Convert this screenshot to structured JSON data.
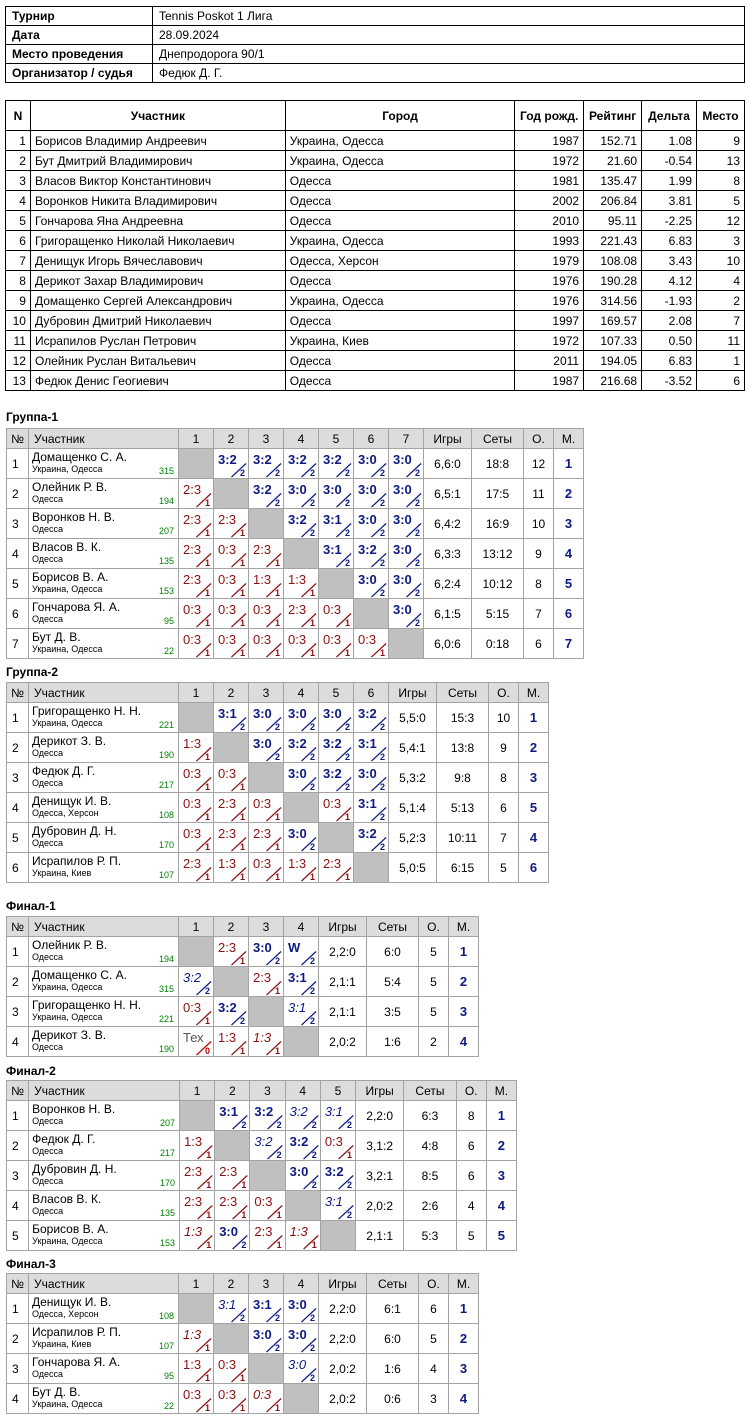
{
  "info": [
    {
      "label": "Турнир",
      "value": "Tennis Poskot 1 Лига"
    },
    {
      "label": "Дата",
      "value": "28.09.2024"
    },
    {
      "label": "Место проведения",
      "value": "Днепродорога 90/1"
    },
    {
      "label": "Организатор / судья",
      "value": "Федюк Д. Г."
    }
  ],
  "participants": {
    "headers": [
      "N",
      "Участник",
      "Город",
      "Год рожд.",
      "Рейтинг",
      "Дельта",
      "Место"
    ],
    "rows": [
      [
        "1",
        "Борисов Владимир Андреевич",
        "Украина, Одесса",
        "1987",
        "152.71",
        "1.08",
        "9"
      ],
      [
        "2",
        "Бут Дмитрий Владимирович",
        "Украина, Одесса",
        "1972",
        "21.60",
        "-0.54",
        "13"
      ],
      [
        "3",
        "Власов Виктор Константинович",
        "Одесса",
        "1981",
        "135.47",
        "1.99",
        "8"
      ],
      [
        "4",
        "Воронков Никита Владимирович",
        "Одесса",
        "2002",
        "206.84",
        "3.81",
        "5"
      ],
      [
        "5",
        "Гончарова Яна Андреевна",
        "Одесса",
        "2010",
        "95.11",
        "-2.25",
        "12"
      ],
      [
        "6",
        "Григоращенко Николай Николаевич",
        "Украина, Одесса",
        "1993",
        "221.43",
        "6.83",
        "3"
      ],
      [
        "7",
        "Денищук Игорь Вячеславович",
        "Одесса, Херсон",
        "1979",
        "108.08",
        "3.43",
        "10"
      ],
      [
        "8",
        "Дерикот Захар Владимирович",
        "Одесса",
        "1976",
        "190.28",
        "4.12",
        "4"
      ],
      [
        "9",
        "Домащенко Сергей Александрович",
        "Украина, Одесса",
        "1976",
        "314.56",
        "-1.93",
        "2"
      ],
      [
        "10",
        "Дубровин Дмитрий Николаевич",
        "Одесса",
        "1997",
        "169.57",
        "2.08",
        "7"
      ],
      [
        "11",
        "Исрапилов Руслан Петрович",
        "Украина, Киев",
        "1972",
        "107.33",
        "0.50",
        "11"
      ],
      [
        "12",
        "Олейник Руслан Витальевич",
        "Одесса",
        "2011",
        "194.05",
        "6.83",
        "1"
      ],
      [
        "13",
        "Федюк Денис Геогиевич",
        "Одесса",
        "1987",
        "216.68",
        "-3.52",
        "6"
      ]
    ]
  },
  "group_headers": {
    "num": "№",
    "player": "Участник",
    "games": "Игры",
    "sets": "Сеты",
    "points": "О.",
    "place": "М."
  },
  "groups": [
    {
      "title": "Группа-1",
      "size": 7,
      "rows": [
        {
          "n": "1",
          "name": "Домащенко С. А.",
          "city": "Украина, Одесса",
          "rating": "315",
          "scores": [
            "",
            "3:2/2",
            "3:2/2",
            "3:2/2",
            "3:2/2",
            "3:0/2",
            "3:0/2"
          ],
          "games": "6,6:0",
          "sets": "18:8",
          "points": "12",
          "place": "1"
        },
        {
          "n": "2",
          "name": "Олейник Р. В.",
          "city": "Одесса",
          "rating": "194",
          "scores": [
            "2:3/1",
            "",
            "3:2/2",
            "3:0/2",
            "3:0/2",
            "3:0/2",
            "3:0/2"
          ],
          "games": "6,5:1",
          "sets": "17:5",
          "points": "11",
          "place": "2"
        },
        {
          "n": "3",
          "name": "Воронков Н. В.",
          "city": "Одесса",
          "rating": "207",
          "scores": [
            "2:3/1",
            "2:3/1",
            "",
            "3:2/2",
            "3:1/2",
            "3:0/2",
            "3:0/2"
          ],
          "games": "6,4:2",
          "sets": "16:9",
          "points": "10",
          "place": "3"
        },
        {
          "n": "4",
          "name": "Власов В. К.",
          "city": "Одесса",
          "rating": "135",
          "scores": [
            "2:3/1",
            "0:3/1",
            "2:3/1",
            "",
            "3:1/2",
            "3:2/2",
            "3:0/2"
          ],
          "games": "6,3:3",
          "sets": "13:12",
          "points": "9",
          "place": "4"
        },
        {
          "n": "5",
          "name": "Борисов В. А.",
          "city": "Украина, Одесса",
          "rating": "153",
          "scores": [
            "2:3/1",
            "0:3/1",
            "1:3/1",
            "1:3/1",
            "",
            "3:0/2",
            "3:0/2"
          ],
          "games": "6,2:4",
          "sets": "10:12",
          "points": "8",
          "place": "5"
        },
        {
          "n": "6",
          "name": "Гончарова Я. А.",
          "city": "Одесса",
          "rating": "95",
          "scores": [
            "0:3/1",
            "0:3/1",
            "0:3/1",
            "2:3/1",
            "0:3/1",
            "",
            "3:0/2"
          ],
          "games": "6,1:5",
          "sets": "5:15",
          "points": "7",
          "place": "6"
        },
        {
          "n": "7",
          "name": "Бут Д. В.",
          "city": "Украина, Одесса",
          "rating": "22",
          "scores": [
            "0:3/1",
            "0:3/1",
            "0:3/1",
            "0:3/1",
            "0:3/1",
            "0:3/1",
            ""
          ],
          "games": "6,0:6",
          "sets": "0:18",
          "points": "6",
          "place": "7"
        }
      ]
    },
    {
      "title": "Группа-2",
      "size": 6,
      "rows": [
        {
          "n": "1",
          "name": "Григоращенко Н. Н.",
          "city": "Украина, Одесса",
          "rating": "221",
          "scores": [
            "",
            "3:1/2",
            "3:0/2",
            "3:0/2",
            "3:0/2",
            "3:2/2"
          ],
          "games": "5,5:0",
          "sets": "15:3",
          "points": "10",
          "place": "1"
        },
        {
          "n": "2",
          "name": "Дерикот З. В.",
          "city": "Одесса",
          "rating": "190",
          "scores": [
            "1:3/1",
            "",
            "3:0/2",
            "3:2/2",
            "3:2/2",
            "3:1/2"
          ],
          "games": "5,4:1",
          "sets": "13:8",
          "points": "9",
          "place": "2"
        },
        {
          "n": "3",
          "name": "Федюк Д. Г.",
          "city": "Одесса",
          "rating": "217",
          "scores": [
            "0:3/1",
            "0:3/1",
            "",
            "3:0/2",
            "3:2/2",
            "3:0/2"
          ],
          "games": "5,3:2",
          "sets": "9:8",
          "points": "8",
          "place": "3"
        },
        {
          "n": "4",
          "name": "Денищук И. В.",
          "city": "Одесса, Херсон",
          "rating": "108",
          "scores": [
            "0:3/1",
            "2:3/1",
            "0:3/1",
            "",
            "0:3/1",
            "3:1/2"
          ],
          "games": "5,1:4",
          "sets": "5:13",
          "points": "6",
          "place": "5"
        },
        {
          "n": "5",
          "name": "Дубровин Д. Н.",
          "city": "Одесса",
          "rating": "170",
          "scores": [
            "0:3/1",
            "2:3/1",
            "2:3/1",
            "3:0/2",
            "",
            "3:2/2"
          ],
          "games": "5,2:3",
          "sets": "10:11",
          "points": "7",
          "place": "4"
        },
        {
          "n": "6",
          "name": "Исрапилов Р. П.",
          "city": "Украина, Киев",
          "rating": "107",
          "scores": [
            "2:3/1",
            "1:3/1",
            "0:3/1",
            "1:3/1",
            "2:3/1",
            ""
          ],
          "games": "5,0:5",
          "sets": "6:15",
          "points": "5",
          "place": "6"
        }
      ]
    },
    {
      "title": "Финал-1",
      "size": 4,
      "rows": [
        {
          "n": "1",
          "name": "Олейник Р. В.",
          "city": "Одесса",
          "rating": "194",
          "scores": [
            "",
            "2:3/1",
            "3:0/2",
            "W/2"
          ],
          "games": "2,2:0",
          "sets": "6:0",
          "points": "5",
          "place": "1"
        },
        {
          "n": "2",
          "name": "Домащенко С. А.",
          "city": "Украина, Одесса",
          "rating": "315",
          "scores": [
            "3:2/2i",
            "",
            "2:3/1",
            "3:1/2"
          ],
          "games": "2,1:1",
          "sets": "5:4",
          "points": "5",
          "place": "2"
        },
        {
          "n": "3",
          "name": "Григоращенко Н. Н.",
          "city": "Украина, Одесса",
          "rating": "221",
          "scores": [
            "0:3/1",
            "3:2/2",
            "",
            "3:1/2i"
          ],
          "games": "2,1:1",
          "sets": "3:5",
          "points": "5",
          "place": "3"
        },
        {
          "n": "4",
          "name": "Дерикот З. В.",
          "city": "Одесса",
          "rating": "190",
          "scores": [
            "Тех/0",
            "1:3/1",
            "1:3/1i",
            ""
          ],
          "games": "2,0:2",
          "sets": "1:6",
          "points": "2",
          "place": "4"
        }
      ]
    },
    {
      "title": "Финал-2",
      "size": 5,
      "rows": [
        {
          "n": "1",
          "name": "Воронков Н. В.",
          "city": "Одесса",
          "rating": "207",
          "scores": [
            "",
            "3:1/2",
            "3:2/2",
            "3:2/2i",
            "3:1/2i"
          ],
          "games": "2,2:0",
          "sets": "6:3",
          "points": "8",
          "place": "1"
        },
        {
          "n": "2",
          "name": "Федюк Д. Г.",
          "city": "Одесса",
          "rating": "217",
          "scores": [
            "1:3/1",
            "",
            "3:2/2i",
            "3:2/2",
            "0:3/1"
          ],
          "games": "3,1:2",
          "sets": "4:8",
          "points": "6",
          "place": "2"
        },
        {
          "n": "3",
          "name": "Дубровин Д. Н.",
          "city": "Одесса",
          "rating": "170",
          "scores": [
            "2:3/1",
            "2:3/1",
            "",
            "3:0/2",
            "3:2/2"
          ],
          "games": "3,2:1",
          "sets": "8:5",
          "points": "6",
          "place": "3"
        },
        {
          "n": "4",
          "name": "Власов В. К.",
          "city": "Одесса",
          "rating": "135",
          "scores": [
            "2:3/1",
            "2:3/1",
            "0:3/1",
            "",
            "3:1/2i"
          ],
          "games": "2,0:2",
          "sets": "2:6",
          "points": "4",
          "place": "4"
        },
        {
          "n": "5",
          "name": "Борисов В. А.",
          "city": "Украина, Одесса",
          "rating": "153",
          "scores": [
            "1:3/1i",
            "3:0/2",
            "2:3/1",
            "1:3/1i",
            ""
          ],
          "games": "2,1:1",
          "sets": "5:3",
          "points": "5",
          "place": "5"
        }
      ]
    },
    {
      "title": "Финал-3",
      "size": 4,
      "rows": [
        {
          "n": "1",
          "name": "Денищук И. В.",
          "city": "Одесса, Херсон",
          "rating": "108",
          "scores": [
            "",
            "3:1/2i",
            "3:1/2",
            "3:0/2"
          ],
          "games": "2,2:0",
          "sets": "6:1",
          "points": "6",
          "place": "1"
        },
        {
          "n": "2",
          "name": "Исрапилов Р. П.",
          "city": "Украина, Киев",
          "rating": "107",
          "scores": [
            "1:3/1i",
            "",
            "3:0/2",
            "3:0/2"
          ],
          "games": "2,2:0",
          "sets": "6:0",
          "points": "5",
          "place": "2"
        },
        {
          "n": "3",
          "name": "Гончарова Я. А.",
          "city": "Одесса",
          "rating": "95",
          "scores": [
            "1:3/1",
            "0:3/1",
            "",
            "3:0/2i"
          ],
          "games": "2,0:2",
          "sets": "1:6",
          "points": "4",
          "place": "3"
        },
        {
          "n": "4",
          "name": "Бут Д. В.",
          "city": "Украина, Одесса",
          "rating": "22",
          "scores": [
            "0:3/1",
            "0:3/1",
            "0:3/1i",
            ""
          ],
          "games": "2,0:2",
          "sets": "0:6",
          "points": "3",
          "place": "4"
        }
      ]
    }
  ]
}
